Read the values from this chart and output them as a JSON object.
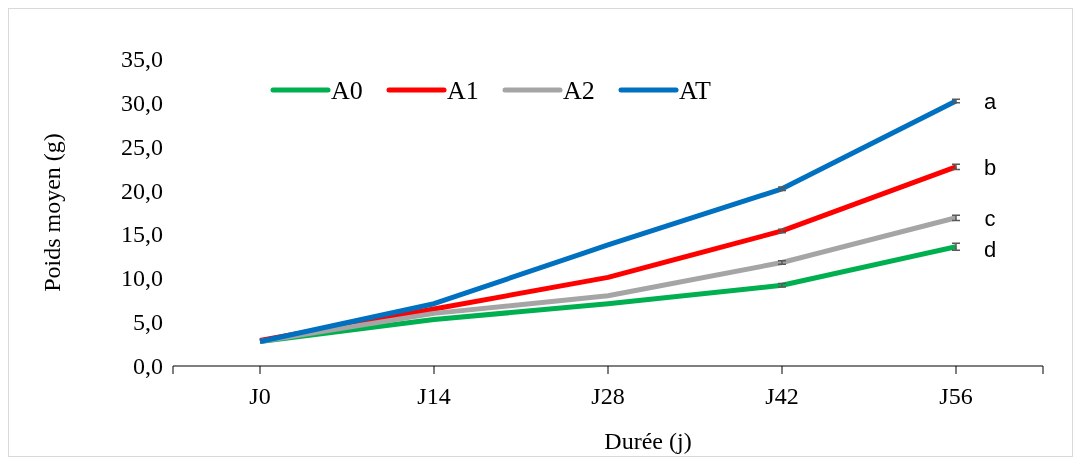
{
  "chart_data": {
    "type": "line",
    "xlabel": "Durée (j)",
    "ylabel": "Poids moyen (g)",
    "categories": [
      "J0",
      "J14",
      "J28",
      "J42",
      "J56"
    ],
    "ylim": [
      0,
      35
    ],
    "yticks": [
      {
        "value": 0,
        "label": "0,0"
      },
      {
        "value": 5,
        "label": "5,0"
      },
      {
        "value": 10,
        "label": "10,0"
      },
      {
        "value": 15,
        "label": "15,0"
      },
      {
        "value": 20,
        "label": "20,0"
      },
      {
        "value": 25,
        "label": "25,0"
      },
      {
        "value": 30,
        "label": "30,0"
      },
      {
        "value": 35,
        "label": "35,0"
      }
    ],
    "legend": "top left",
    "grid": false,
    "marker": "none",
    "line_style": "solid",
    "series": [
      {
        "name": "A0",
        "color": "#00b050",
        "values": [
          2.8,
          5.3,
          7.1,
          9.2,
          13.6
        ],
        "errors": [
          null,
          null,
          null,
          0.2,
          0.4
        ]
      },
      {
        "name": "A1",
        "color": "#ff0000",
        "values": [
          2.9,
          6.5,
          10.1,
          15.4,
          22.7
        ],
        "errors": [
          null,
          null,
          null,
          0.2,
          0.3
        ]
      },
      {
        "name": "A2",
        "color": "#a5a5a5",
        "values": [
          2.8,
          6.0,
          8.0,
          11.8,
          16.9
        ],
        "errors": [
          null,
          null,
          null,
          0.2,
          0.3
        ]
      },
      {
        "name": "AT",
        "color": "#0070c0",
        "values": [
          2.8,
          7.1,
          13.8,
          20.2,
          30.2
        ],
        "errors": [
          null,
          null,
          null,
          0.2,
          0.2
        ]
      }
    ],
    "annotations": [
      {
        "text": "a",
        "x": "J56",
        "y": 30.2
      },
      {
        "text": "b",
        "x": "J56",
        "y": 22.7
      },
      {
        "text": "c",
        "x": "J56",
        "y": 16.9
      },
      {
        "text": "d",
        "x": "J56",
        "y": 13.3
      }
    ]
  }
}
